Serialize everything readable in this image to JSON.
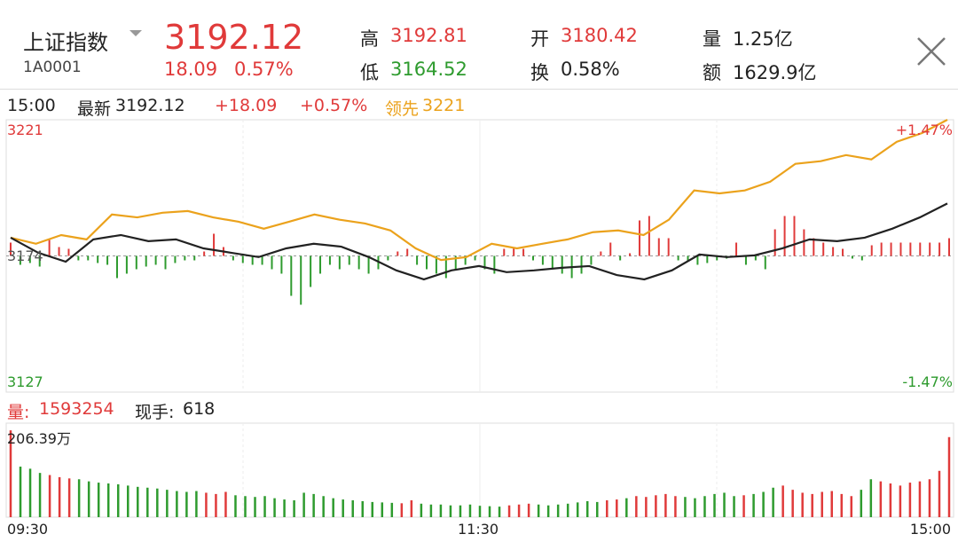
{
  "header": {
    "name": "上证指数",
    "code": "1A0001",
    "price": "3192.12",
    "change": "18.09",
    "change_pct": "0.57%",
    "high_label": "高",
    "high": "3192.81",
    "low_label": "低",
    "low": "3164.52",
    "open_label": "开",
    "open": "3180.42",
    "turnover_label": "换",
    "turnover": "0.58%",
    "volume_label": "量",
    "volume": "1.25亿",
    "amount_label": "额",
    "amount": "1629.9亿"
  },
  "info": {
    "time": "15:00",
    "latest_label": "最新",
    "latest": "3192.12",
    "change": "+18.09",
    "change_pct": "+0.57%",
    "lead_label": "领先",
    "lead": "3221"
  },
  "axis": {
    "top": "3221",
    "mid": "3174",
    "bottom": "3127",
    "top_pct": "+1.47%",
    "bottom_pct": "-1.47%",
    "vol_max": "206.39万",
    "t_start": "09:30",
    "t_mid": "11:30",
    "t_end": "15:00"
  },
  "vol_info": {
    "label": "量:",
    "value": "1593254",
    "hand_label": "现手:",
    "hand": "618"
  },
  "colors": {
    "up": "#e03a3a",
    "down": "#2e9b2e",
    "price": "#222222",
    "lead": "#eba21c"
  },
  "chart_data": {
    "type": "line",
    "ylim": [
      3127,
      3221
    ],
    "prev_close": 3174,
    "price": [
      3180.3,
      3175.1,
      3172.0,
      3179.7,
      3181.2,
      3179.1,
      3179.7,
      3176.6,
      3175.1,
      3173.6,
      3176.6,
      3178.2,
      3177.2,
      3173.6,
      3169.0,
      3165.9,
      3169.0,
      3170.5,
      3168.4,
      3169.0,
      3169.9,
      3170.5,
      3167.4,
      3165.9,
      3169.0,
      3174.5,
      3173.6,
      3174.2,
      3176.6,
      3179.7,
      3179.1,
      3180.3,
      3183.4,
      3187.3,
      3192.1
    ],
    "lead": [
      3180.3,
      3178.2,
      3181.2,
      3179.7,
      3188.3,
      3187.3,
      3188.9,
      3189.5,
      3187.3,
      3185.8,
      3183.4,
      3185.8,
      3188.3,
      3186.5,
      3185.2,
      3182.8,
      3176.6,
      3172.6,
      3173.6,
      3178.2,
      3176.6,
      3178.2,
      3179.7,
      3182.2,
      3182.8,
      3181.2,
      3186.5,
      3196.6,
      3195.6,
      3196.6,
      3199.6,
      3205.8,
      3206.7,
      3208.8,
      3207.3,
      3213.4,
      3216.4,
      3221.0
    ],
    "deviation": [
      15,
      -10,
      -8,
      -12,
      18,
      10,
      8,
      -5,
      -5,
      -8,
      -10,
      -25,
      -20,
      -15,
      -12,
      -10,
      -15,
      -8,
      -5,
      -5,
      5,
      25,
      10,
      -5,
      -8,
      -10,
      -10,
      -15,
      -20,
      -45,
      -55,
      -35,
      -20,
      -10,
      -15,
      -10,
      -15,
      -20,
      -15,
      -5,
      5,
      8,
      -10,
      -15,
      -20,
      -25,
      -15,
      -10,
      -5,
      -15,
      -20,
      8,
      10,
      8,
      -5,
      -10,
      -15,
      -20,
      -25,
      -20,
      -10,
      5,
      15,
      -5,
      3,
      40,
      45,
      20,
      20,
      -5,
      -5,
      -10,
      -8,
      -5,
      -3,
      15,
      -10,
      -5,
      -15,
      30,
      45,
      45,
      30,
      20,
      15,
      10,
      8,
      -3,
      -5,
      12,
      15,
      15,
      15,
      15,
      15,
      15,
      15,
      20
    ],
    "volume": [
      206,
      120,
      115,
      105,
      100,
      95,
      92,
      90,
      85,
      82,
      80,
      78,
      75,
      72,
      70,
      68,
      65,
      62,
      60,
      62,
      58,
      55,
      60,
      52,
      50,
      48,
      50,
      45,
      42,
      40,
      58,
      55,
      50,
      45,
      42,
      40,
      38,
      36,
      35,
      34,
      33,
      40,
      32,
      30,
      30,
      28,
      28,
      30,
      27,
      26,
      25,
      28,
      30,
      32,
      30,
      28,
      30,
      32,
      35,
      38,
      36,
      40,
      42,
      45,
      50,
      48,
      52,
      55,
      50,
      48,
      45,
      50,
      55,
      58,
      50,
      52,
      55,
      60,
      70,
      75,
      65,
      58,
      55,
      60,
      62,
      55,
      50,
      65,
      90,
      85,
      80,
      75,
      82,
      85,
      90,
      110,
      190
    ]
  }
}
